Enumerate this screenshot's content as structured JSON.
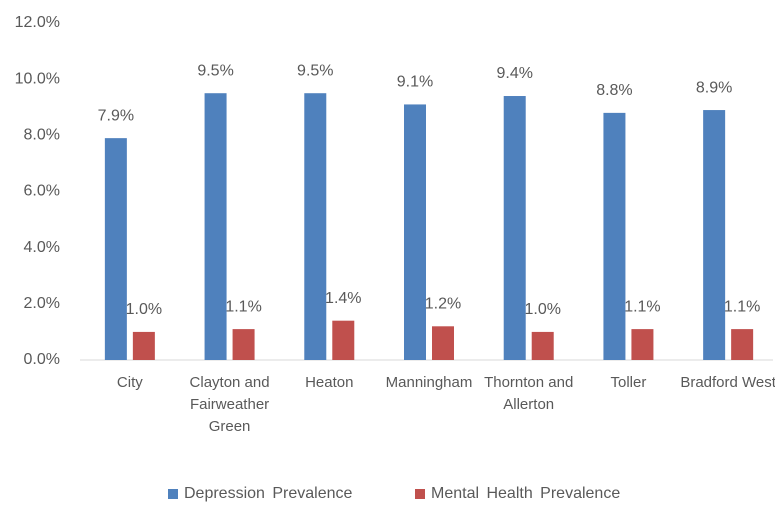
{
  "chart_data": {
    "type": "bar",
    "categories": [
      "City",
      "Clayton and Fairweather Green",
      "Heaton",
      "Manningham",
      "Thornton and Allerton",
      "Toller",
      "Bradford West"
    ],
    "series": [
      {
        "name": "Depression Prevalence",
        "color": "#4f81bd",
        "values": [
          7.9,
          9.5,
          9.5,
          9.1,
          9.4,
          8.8,
          8.9
        ],
        "value_labels": [
          "7.9%",
          "9.5%",
          "9.5%",
          "9.1%",
          "9.4%",
          "8.8%",
          "8.9%"
        ]
      },
      {
        "name": "Mental Health Prevalence",
        "color": "#c0504d",
        "values": [
          1.0,
          1.1,
          1.4,
          1.2,
          1.0,
          1.1,
          1.1
        ],
        "value_labels": [
          "1.0%",
          "1.1%",
          "1.4%",
          "1.2%",
          "1.0%",
          "1.1%",
          "1.1%"
        ]
      }
    ],
    "ylim": [
      0,
      12
    ],
    "yticks": [
      {
        "value": 0,
        "label": "0.0%"
      },
      {
        "value": 2,
        "label": "2.0%"
      },
      {
        "value": 4,
        "label": "4.0%"
      },
      {
        "value": 6,
        "label": "6.0%"
      },
      {
        "value": 8,
        "label": "8.0%"
      },
      {
        "value": 10,
        "label": "10.0%"
      },
      {
        "value": 12,
        "label": "12.0%"
      }
    ],
    "grid": false,
    "legend": "bottom"
  }
}
